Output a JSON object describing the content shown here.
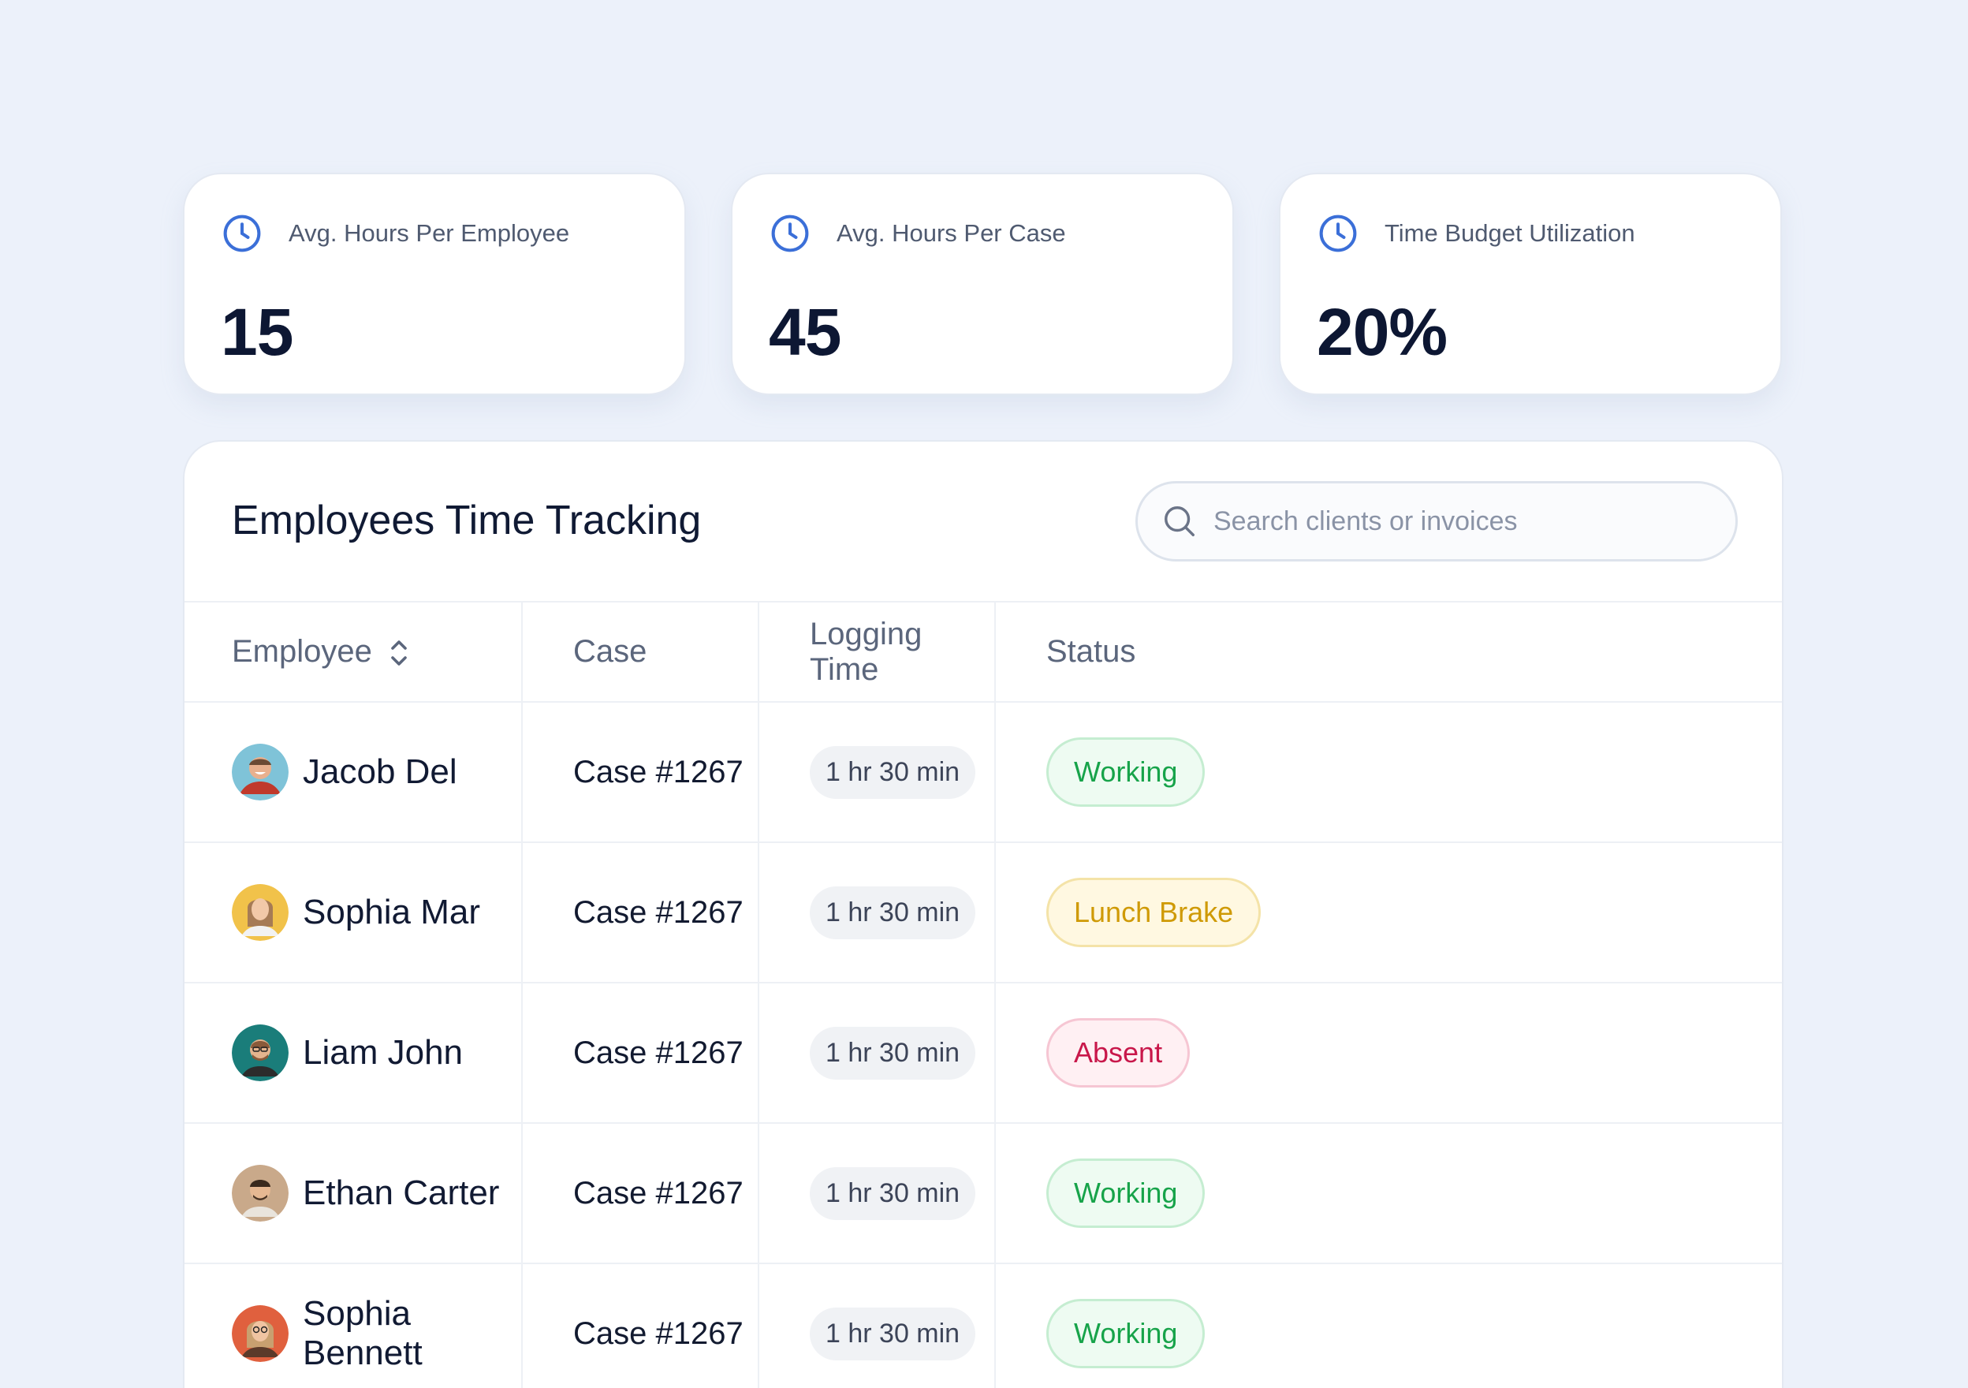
{
  "stats": [
    {
      "label": "Avg. Hours Per Employee",
      "value": "15",
      "icon": "clock-icon"
    },
    {
      "label": "Avg. Hours Per Case",
      "value": "45",
      "icon": "clock-icon"
    },
    {
      "label": "Time Budget Utilization",
      "value": "20%",
      "icon": "clock-icon"
    }
  ],
  "panel": {
    "title": "Employees Time Tracking",
    "search_placeholder": "Search clients or invoices"
  },
  "table": {
    "headers": {
      "employee": "Employee",
      "case": "Case",
      "time": "Logging Time",
      "status": "Status"
    },
    "rows": [
      {
        "name": "Jacob Del",
        "case": "Case #1267",
        "time": "1 hr 30 min",
        "status": "Working"
      },
      {
        "name": "Sophia Mar",
        "case": "Case #1267",
        "time": "1 hr 30 min",
        "status": "Lunch Brake"
      },
      {
        "name": "Liam John",
        "case": "Case #1267",
        "time": "1 hr 30 min",
        "status": "Absent"
      },
      {
        "name": "Ethan Carter",
        "case": "Case #1267",
        "time": "1 hr 30 min",
        "status": "Working"
      },
      {
        "name": "Sophia Bennett",
        "case": "Case #1267",
        "time": "1 hr 30 min",
        "status": "Working"
      }
    ]
  },
  "colors": {
    "accent": "#3b6fd8",
    "working": "#17a34a",
    "lunch": "#cf9a06",
    "absent": "#c8174a"
  }
}
